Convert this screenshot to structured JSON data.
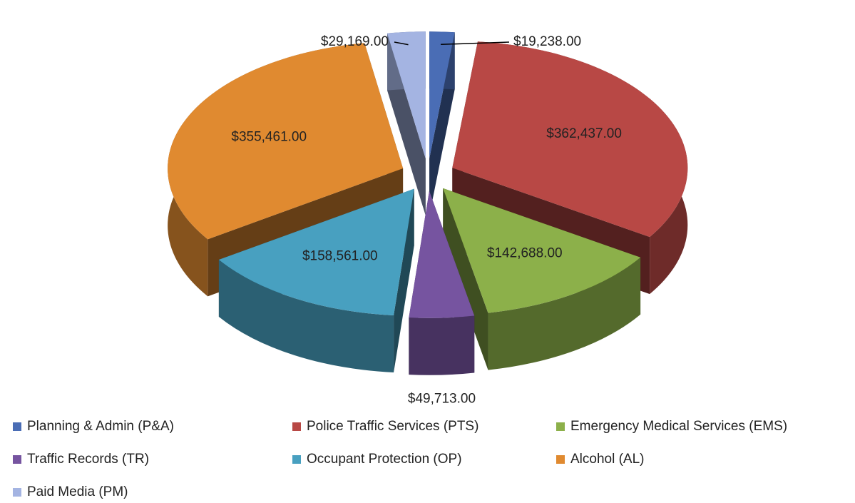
{
  "chart_data": {
    "type": "pie3d",
    "categories": [
      "Planning & Admin (P&A)",
      "Police Traffic Services (PTS)",
      "Emergency Medical Services (EMS)",
      "Traffic Records (TR)",
      "Occupant Protection (OP)",
      "Alcohol (AL)",
      "Paid Media (PM)"
    ],
    "values": [
      19238,
      362437,
      142688,
      49713,
      158561,
      355461,
      29169
    ],
    "value_labels": [
      "$19,238.00",
      "$362,437.00",
      "$142,688.00",
      "$49,713.00",
      "$158,561.00",
      "$355,461.00",
      "$29,169.00"
    ],
    "colors": [
      "#4a6db5",
      "#b84845",
      "#8cb04a",
      "#7654a0",
      "#48a0c0",
      "#e08a30",
      "#a4b4e2"
    ],
    "legend": "bottom"
  }
}
